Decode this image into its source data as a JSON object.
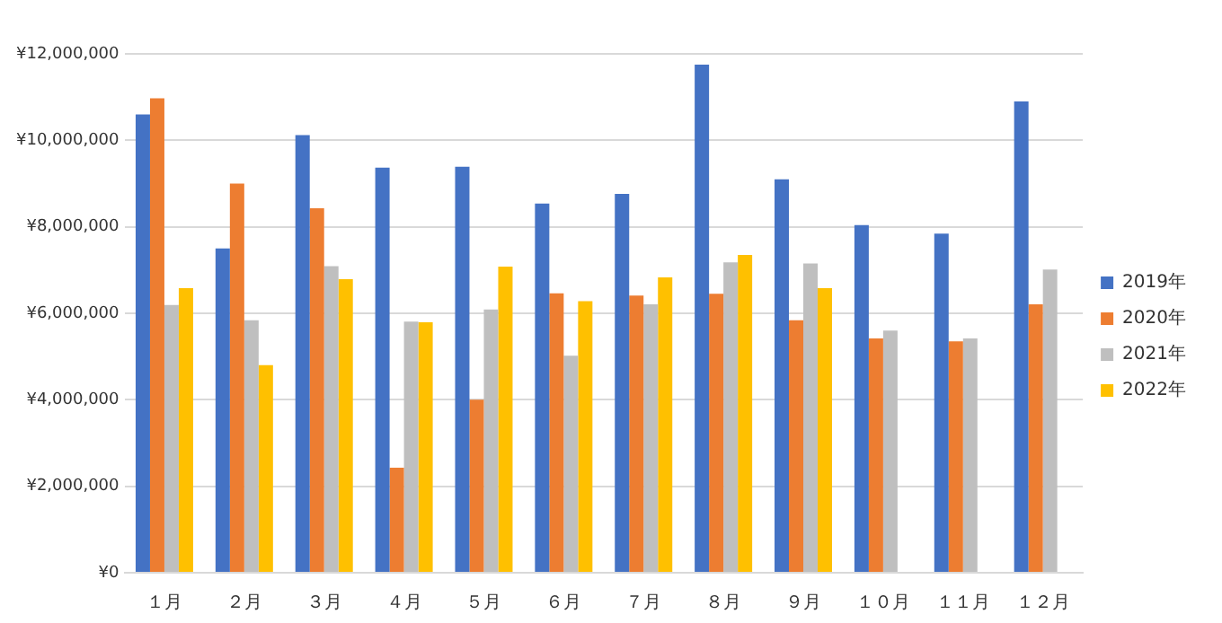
{
  "chart_data": {
    "type": "bar",
    "categories": [
      "１月",
      "２月",
      "３月",
      "４月",
      "５月",
      "６月",
      "７月",
      "８月",
      "９月",
      "１０月",
      "１１月",
      "１２月"
    ],
    "series": [
      {
        "name": "2019年",
        "color": "#4472c4",
        "values": [
          10600000,
          7500000,
          10120000,
          9370000,
          9390000,
          8540000,
          8760000,
          11750000,
          9100000,
          8040000,
          7840000,
          10900000
        ]
      },
      {
        "name": "2020年",
        "color": "#ed7d31",
        "values": [
          10970000,
          9000000,
          8430000,
          2430000,
          4000000,
          6460000,
          6410000,
          6450000,
          5840000,
          5420000,
          5350000,
          6210000
        ]
      },
      {
        "name": "2021年",
        "color": "#bfbfbf",
        "values": [
          6190000,
          5840000,
          7090000,
          5810000,
          6090000,
          5020000,
          6210000,
          7180000,
          7150000,
          5600000,
          5420000,
          7010000
        ]
      },
      {
        "name": "2022年",
        "color": "#ffc000",
        "values": [
          6580000,
          4800000,
          6790000,
          5790000,
          7080000,
          6280000,
          6830000,
          7350000,
          6580000,
          null,
          null,
          null
        ]
      }
    ],
    "ylim": [
      0,
      12000000
    ],
    "yticks": [
      {
        "value": 0,
        "label": "¥0"
      },
      {
        "value": 2000000,
        "label": "¥2,000,000"
      },
      {
        "value": 4000000,
        "label": "¥4,000,000"
      },
      {
        "value": 6000000,
        "label": "¥6,000,000"
      },
      {
        "value": 8000000,
        "label": "¥8,000,000"
      },
      {
        "value": 10000000,
        "label": "¥10,000,000"
      },
      {
        "value": 12000000,
        "label": "¥12,000,000"
      }
    ],
    "grid": "y",
    "legend": "right"
  }
}
